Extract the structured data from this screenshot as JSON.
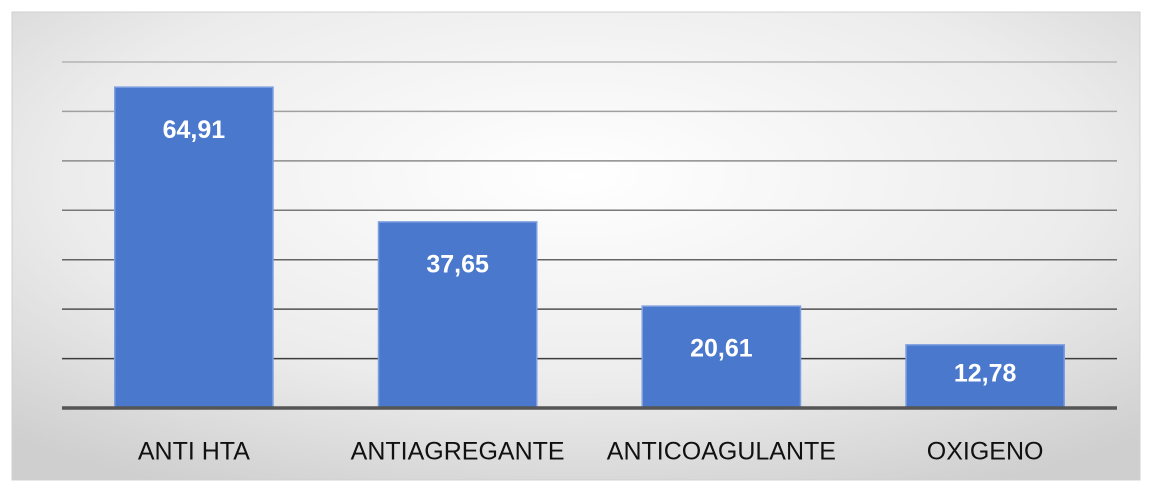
{
  "chart_data": {
    "type": "bar",
    "categories": [
      "ANTI HTA",
      "ANTIAGREGANTE",
      "ANTICOAGULANTE",
      "OXIGENO"
    ],
    "values": [
      64.91,
      37.65,
      20.61,
      12.78
    ],
    "value_labels": [
      "64,91",
      "37,65",
      "20,61",
      "12,78"
    ],
    "color": "#4a78cc",
    "ylim": [
      0,
      70
    ],
    "yticks": [
      0,
      10,
      20,
      30,
      40,
      50,
      60,
      70
    ],
    "grid": true
  }
}
